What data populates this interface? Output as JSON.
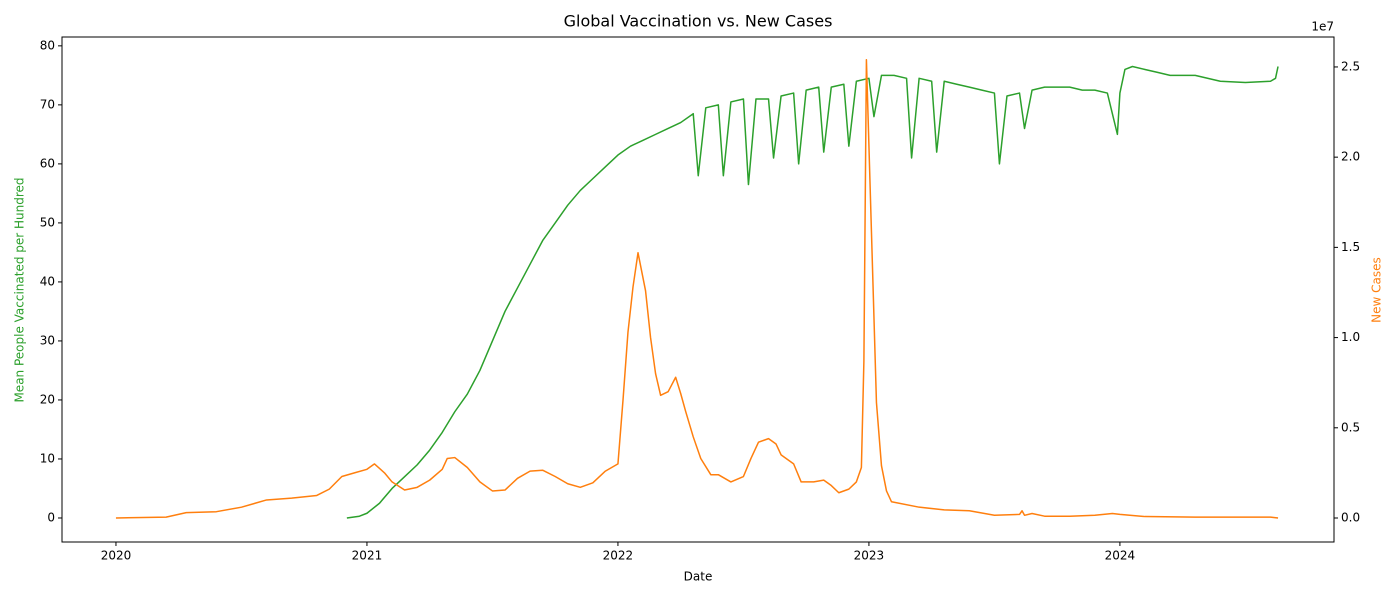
{
  "chart_data": {
    "type": "line",
    "title": "Global Vaccination vs. New Cases",
    "x_label": "Date",
    "y_label": "Mean People Vaccinated per Hundred",
    "y2_label": "New Cases",
    "y2_offset_label": "1e7",
    "xlim": [
      2019.785,
      2024.853
    ],
    "xticks": [
      2020,
      2021,
      2022,
      2023,
      2024
    ],
    "ylim": [
      -4.07,
      81.5
    ],
    "yticks": [
      0,
      10,
      20,
      30,
      40,
      50,
      60,
      70,
      80
    ],
    "y2lim": [
      -1330000,
      26660000
    ],
    "y2ticks": [
      {
        "value": 0,
        "label": "0.0"
      },
      {
        "value": 5000000,
        "label": "0.5"
      },
      {
        "value": 10000000,
        "label": "1.0"
      },
      {
        "value": 15000000,
        "label": "1.5"
      },
      {
        "value": 20000000,
        "label": "2.0"
      },
      {
        "value": 25000000,
        "label": "2.5"
      }
    ],
    "y_label_color": "#2ca02c",
    "y2_label_color": "#ff7f0e",
    "series": [
      {
        "color": "#2ca02c",
        "axis": "y",
        "x": [
          2020.92,
          2020.97,
          2021.0,
          2021.05,
          2021.1,
          2021.15,
          2021.2,
          2021.25,
          2021.3,
          2021.35,
          2021.4,
          2021.45,
          2021.5,
          2021.55,
          2021.6,
          2021.65,
          2021.7,
          2021.75,
          2021.8,
          2021.85,
          2021.9,
          2021.95,
          2022.0,
          2022.05,
          2022.1,
          2022.15,
          2022.2,
          2022.25,
          2022.3,
          2022.32,
          2022.35,
          2022.4,
          2022.42,
          2022.45,
          2022.5,
          2022.52,
          2022.55,
          2022.6,
          2022.62,
          2022.65,
          2022.7,
          2022.72,
          2022.75,
          2022.8,
          2022.82,
          2022.85,
          2022.9,
          2022.92,
          2022.95,
          2023.0,
          2023.02,
          2023.05,
          2023.1,
          2023.15,
          2023.17,
          2023.2,
          2023.25,
          2023.27,
          2023.3,
          2023.35,
          2023.4,
          2023.45,
          2023.5,
          2023.52,
          2023.55,
          2023.6,
          2023.62,
          2023.65,
          2023.7,
          2023.75,
          2023.8,
          2023.85,
          2023.9,
          2023.95,
          2023.99,
          2024.0,
          2024.02,
          2024.05,
          2024.1,
          2024.15,
          2024.2,
          2024.3,
          2024.4,
          2024.5,
          2024.6,
          2024.62,
          2024.63
        ],
        "values": [
          0,
          0.3,
          0.8,
          2.5,
          5,
          7,
          9,
          11.5,
          14.5,
          18,
          21,
          25,
          30,
          35,
          39,
          43,
          47,
          50,
          53,
          55.5,
          57.5,
          59.5,
          61.5,
          63,
          64,
          65,
          66,
          67,
          68.5,
          58,
          69.5,
          70,
          58,
          70.5,
          71,
          56.5,
          71,
          71,
          61,
          71.5,
          72,
          60,
          72.5,
          73,
          62,
          73,
          73.5,
          63,
          74,
          74.5,
          68,
          75,
          75,
          74.5,
          61,
          74.5,
          74,
          62,
          74,
          73.5,
          73,
          72.5,
          72,
          60,
          71.5,
          72,
          66,
          72.5,
          73,
          73,
          73,
          72.5,
          72.5,
          72,
          65,
          72,
          76,
          76.5,
          76,
          75.5,
          75,
          75,
          74,
          73.8,
          74,
          74.5,
          76.5
        ]
      },
      {
        "color": "#ff7f0e",
        "axis": "y2",
        "x": [
          2020.0,
          2020.2,
          2020.28,
          2020.4,
          2020.5,
          2020.6,
          2020.7,
          2020.8,
          2020.85,
          2020.9,
          2020.95,
          2021.0,
          2021.03,
          2021.07,
          2021.1,
          2021.15,
          2021.2,
          2021.25,
          2021.3,
          2021.32,
          2021.35,
          2021.4,
          2021.45,
          2021.5,
          2021.55,
          2021.6,
          2021.65,
          2021.7,
          2021.75,
          2021.8,
          2021.85,
          2021.9,
          2021.95,
          2022.0,
          2022.02,
          2022.04,
          2022.06,
          2022.08,
          2022.11,
          2022.13,
          2022.15,
          2022.17,
          2022.2,
          2022.23,
          2022.25,
          2022.27,
          2022.3,
          2022.33,
          2022.37,
          2022.4,
          2022.45,
          2022.5,
          2022.53,
          2022.56,
          2022.6,
          2022.63,
          2022.65,
          2022.7,
          2022.73,
          2022.78,
          2022.82,
          2022.85,
          2022.88,
          2022.92,
          2022.95,
          2022.97,
          2022.98,
          2022.99,
          2023.01,
          2023.03,
          2023.05,
          2023.07,
          2023.09,
          2023.2,
          2023.3,
          2023.4,
          2023.5,
          2023.6,
          2023.61,
          2023.62,
          2023.65,
          2023.7,
          2023.8,
          2023.9,
          2023.97,
          2024.0,
          2024.1,
          2024.3,
          2024.5,
          2024.6,
          2024.63
        ],
        "values": [
          0,
          50000,
          300000,
          350000,
          600000,
          1000000,
          1100000,
          1250000,
          1600000,
          2300000,
          2500000,
          2700000,
          3000000,
          2500000,
          2000000,
          1550000,
          1700000,
          2100000,
          2700000,
          3300000,
          3350000,
          2800000,
          2000000,
          1500000,
          1550000,
          2200000,
          2600000,
          2650000,
          2300000,
          1900000,
          1700000,
          1950000,
          2600000,
          3000000,
          6500000,
          10300000,
          12800000,
          14700000,
          12600000,
          10000000,
          8000000,
          6800000,
          7000000,
          7800000,
          6900000,
          5900000,
          4500000,
          3300000,
          2400000,
          2400000,
          2000000,
          2300000,
          3300000,
          4200000,
          4400000,
          4100000,
          3500000,
          3000000,
          2000000,
          2000000,
          2100000,
          1800000,
          1400000,
          1600000,
          2000000,
          2800000,
          8700000,
          25400000,
          15900000,
          6400000,
          2900000,
          1500000,
          900000,
          600000,
          450000,
          400000,
          150000,
          200000,
          400000,
          150000,
          250000,
          100000,
          100000,
          150000,
          250000,
          200000,
          80000,
          50000,
          50000,
          50000,
          0
        ]
      }
    ]
  }
}
